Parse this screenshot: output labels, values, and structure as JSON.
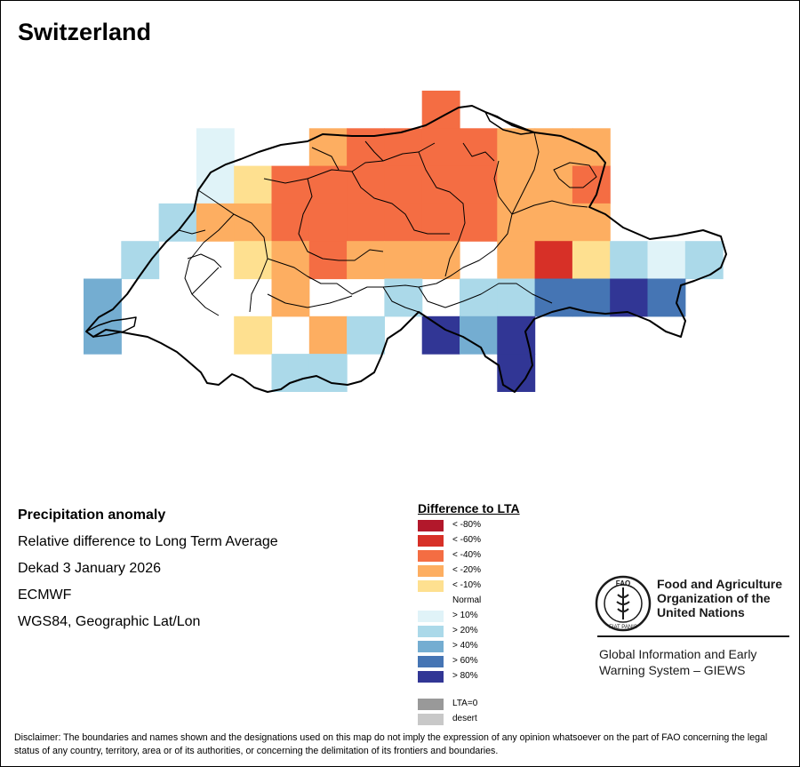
{
  "map": {
    "title": "Switzerland"
  },
  "info": {
    "heading": "Precipitation anomaly",
    "subtitle": "Relative difference to Long Term Average",
    "period": "Dekad 3 January 2026",
    "source": "ECMWF",
    "projection": "WGS84, Geographic Lat/Lon"
  },
  "legend": {
    "title": "Difference to LTA",
    "classes": [
      {
        "label": "< -80%",
        "color": "#b2182b"
      },
      {
        "label": "< -60%",
        "color": "#d73027"
      },
      {
        "label": "< -40%",
        "color": "#f46d43"
      },
      {
        "label": "< -20%",
        "color": "#fdae61"
      },
      {
        "label": "< -10%",
        "color": "#fee090"
      },
      {
        "label": "Normal",
        "color": "#ffffff"
      },
      {
        "label": "> 10%",
        "color": "#e0f3f8"
      },
      {
        "label": "> 20%",
        "color": "#abd9e9"
      },
      {
        "label": "> 40%",
        "color": "#74add1"
      },
      {
        "label": "> 60%",
        "color": "#4575b4"
      },
      {
        "label": "> 80%",
        "color": "#313695"
      }
    ],
    "extra": [
      {
        "label": "LTA=0",
        "color": "#999999"
      },
      {
        "label": "desert",
        "color": "#c8c8c8"
      }
    ]
  },
  "org": {
    "name_line1": "Food and Agriculture",
    "name_line2": "Organization of the",
    "name_line3": "United Nations",
    "logo_letters": "FAO",
    "motto": "FIAT PANIS",
    "system_line1": "Global Information and Early",
    "system_line2": "Warning System – GIEWS"
  },
  "disclaimer": "Disclaimer: The boundaries and names shown and the designations used on this map do not imply the expression of any opinion whatsoever on the part of FAO concerning the legal status of any country, territory, area or of its authorities, or concerning the delimitation of its frontiers and boundaries.",
  "grid": {
    "rows": [
      [
        "",
        "",
        "",
        "",
        "",
        "",
        "",
        "",
        "",
        "",
        "",
        "",
        "",
        "",
        "",
        "",
        "",
        ""
      ],
      [
        "",
        "",
        "",
        "",
        "",
        "",
        "",
        "",
        "",
        "",
        "",
        "",
        "",
        "",
        "",
        "",
        "",
        ""
      ],
      [
        "",
        "",
        "",
        "",
        "",
        "",
        "",
        "",
        "",
        "",
        "",
        "",
        "",
        "",
        "",
        "",
        "",
        ""
      ]
    ],
    "cells": [
      {
        "col": 9,
        "row": 0,
        "cls": 2
      },
      {
        "col": 3,
        "row": 1,
        "cls": 6
      },
      {
        "col": 6,
        "row": 1,
        "cls": 3
      },
      {
        "col": 7,
        "row": 1,
        "cls": 2
      },
      {
        "col": 8,
        "row": 1,
        "cls": 2
      },
      {
        "col": 9,
        "row": 1,
        "cls": 2
      },
      {
        "col": 10,
        "row": 1,
        "cls": 2
      },
      {
        "col": 11,
        "row": 1,
        "cls": 3
      },
      {
        "col": 12,
        "row": 1,
        "cls": 3
      },
      {
        "col": 13,
        "row": 1,
        "cls": 3
      },
      {
        "col": 3,
        "row": 2,
        "cls": 6
      },
      {
        "col": 4,
        "row": 2,
        "cls": 4
      },
      {
        "col": 5,
        "row": 2,
        "cls": 2
      },
      {
        "col": 6,
        "row": 2,
        "cls": 2
      },
      {
        "col": 7,
        "row": 2,
        "cls": 2
      },
      {
        "col": 8,
        "row": 2,
        "cls": 2
      },
      {
        "col": 9,
        "row": 2,
        "cls": 2
      },
      {
        "col": 10,
        "row": 2,
        "cls": 2
      },
      {
        "col": 11,
        "row": 2,
        "cls": 3
      },
      {
        "col": 12,
        "row": 2,
        "cls": 3
      },
      {
        "col": 13,
        "row": 2,
        "cls": 2
      },
      {
        "col": 2,
        "row": 3,
        "cls": 7
      },
      {
        "col": 3,
        "row": 3,
        "cls": 3
      },
      {
        "col": 4,
        "row": 3,
        "cls": 3
      },
      {
        "col": 5,
        "row": 3,
        "cls": 2
      },
      {
        "col": 6,
        "row": 3,
        "cls": 2
      },
      {
        "col": 7,
        "row": 3,
        "cls": 2
      },
      {
        "col": 8,
        "row": 3,
        "cls": 2
      },
      {
        "col": 9,
        "row": 3,
        "cls": 2
      },
      {
        "col": 10,
        "row": 3,
        "cls": 2
      },
      {
        "col": 11,
        "row": 3,
        "cls": 3
      },
      {
        "col": 12,
        "row": 3,
        "cls": 3
      },
      {
        "col": 13,
        "row": 3,
        "cls": 3
      },
      {
        "col": 1,
        "row": 4,
        "cls": 7
      },
      {
        "col": 4,
        "row": 4,
        "cls": 4
      },
      {
        "col": 5,
        "row": 4,
        "cls": 3
      },
      {
        "col": 6,
        "row": 4,
        "cls": 2
      },
      {
        "col": 7,
        "row": 4,
        "cls": 3
      },
      {
        "col": 8,
        "row": 4,
        "cls": 3
      },
      {
        "col": 9,
        "row": 4,
        "cls": 3
      },
      {
        "col": 11,
        "row": 4,
        "cls": 3
      },
      {
        "col": 12,
        "row": 4,
        "cls": 1
      },
      {
        "col": 13,
        "row": 4,
        "cls": 4
      },
      {
        "col": 14,
        "row": 4,
        "cls": 7
      },
      {
        "col": 15,
        "row": 4,
        "cls": 6
      },
      {
        "col": 16,
        "row": 4,
        "cls": 7
      },
      {
        "col": 0,
        "row": 5,
        "cls": 8
      },
      {
        "col": 5,
        "row": 5,
        "cls": 3
      },
      {
        "col": 8,
        "row": 5,
        "cls": 7
      },
      {
        "col": 10,
        "row": 5,
        "cls": 7
      },
      {
        "col": 11,
        "row": 5,
        "cls": 7
      },
      {
        "col": 12,
        "row": 5,
        "cls": 9
      },
      {
        "col": 13,
        "row": 5,
        "cls": 9
      },
      {
        "col": 14,
        "row": 5,
        "cls": 10
      },
      {
        "col": 15,
        "row": 5,
        "cls": 9
      },
      {
        "col": 0,
        "row": 6,
        "cls": 8
      },
      {
        "col": 4,
        "row": 6,
        "cls": 4
      },
      {
        "col": 6,
        "row": 6,
        "cls": 3
      },
      {
        "col": 7,
        "row": 6,
        "cls": 7
      },
      {
        "col": 9,
        "row": 6,
        "cls": 10
      },
      {
        "col": 10,
        "row": 6,
        "cls": 8
      },
      {
        "col": 11,
        "row": 6,
        "cls": 10
      },
      {
        "col": 5,
        "row": 7,
        "cls": 7
      },
      {
        "col": 6,
        "row": 7,
        "cls": 7
      },
      {
        "col": 11,
        "row": 7,
        "cls": 10
      }
    ]
  }
}
